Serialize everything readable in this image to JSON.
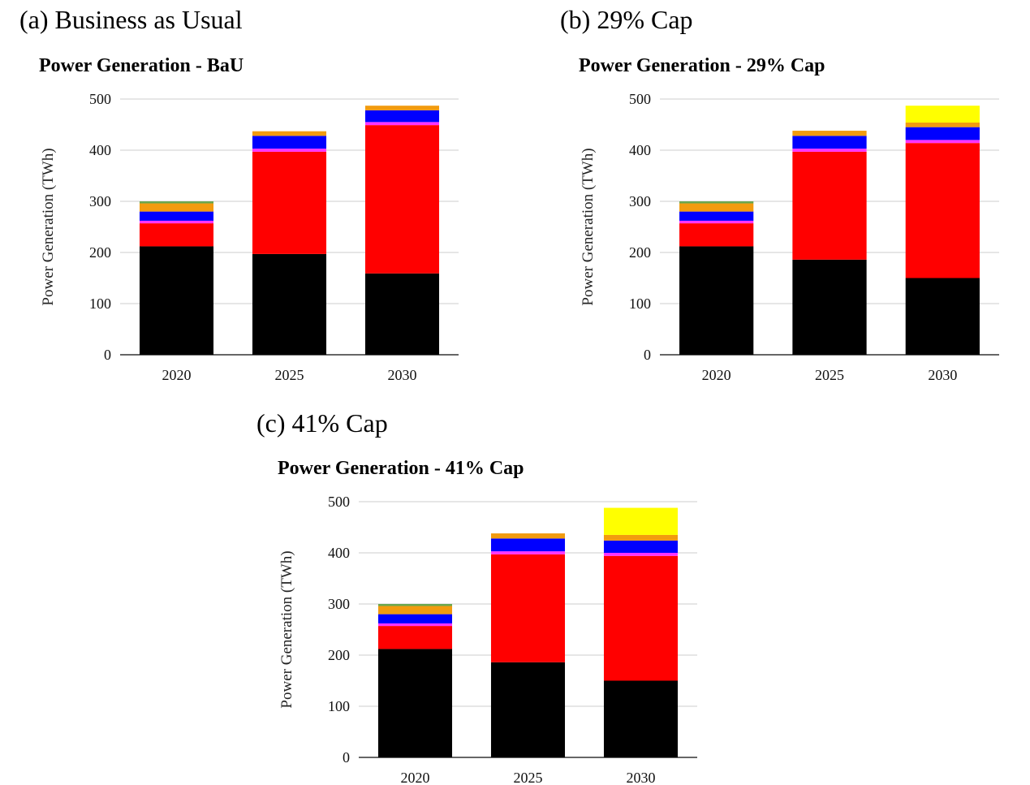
{
  "panels": [
    {
      "label": "(a) Business as Usual"
    },
    {
      "label": "(b) 29% Cap"
    },
    {
      "label": "(c) 41% Cap"
    }
  ],
  "colors": [
    "#000000",
    "#ff0000",
    "#ff33ff",
    "#0000ff",
    "#f29b0f",
    "#ffff00",
    "#6aa84f"
  ],
  "chart_data": [
    {
      "type": "bar",
      "stacked": true,
      "title": "Power Generation - BaU",
      "ylabel": "Power Generation (TWh)",
      "xlabel": "",
      "categories": [
        "2020",
        "2025",
        "2030"
      ],
      "ylim": [
        0,
        500
      ],
      "yticks": [
        0,
        100,
        200,
        300,
        400,
        500
      ],
      "grid": true,
      "series": [
        {
          "color": "#000000",
          "values": [
            212,
            197,
            159
          ]
        },
        {
          "color": "#ff0000",
          "values": [
            45,
            200,
            290
          ]
        },
        {
          "color": "#ff33ff",
          "values": [
            5,
            6,
            6
          ]
        },
        {
          "color": "#0000ff",
          "values": [
            18,
            25,
            23
          ]
        },
        {
          "color": "#f29b0f",
          "values": [
            16,
            9,
            9
          ]
        },
        {
          "color": "#ffff00",
          "values": [
            0,
            0,
            0
          ]
        },
        {
          "color": "#6aa84f",
          "values": [
            4,
            0,
            0
          ]
        }
      ]
    },
    {
      "type": "bar",
      "stacked": true,
      "title": "Power Generation - 29% Cap",
      "ylabel": "Power Generation (TWh)",
      "xlabel": "",
      "categories": [
        "2020",
        "2025",
        "2030"
      ],
      "ylim": [
        0,
        500
      ],
      "yticks": [
        0,
        100,
        200,
        300,
        400,
        500
      ],
      "grid": true,
      "series": [
        {
          "color": "#000000",
          "values": [
            212,
            186,
            150
          ]
        },
        {
          "color": "#ff0000",
          "values": [
            45,
            211,
            264
          ]
        },
        {
          "color": "#ff33ff",
          "values": [
            5,
            6,
            6
          ]
        },
        {
          "color": "#0000ff",
          "values": [
            18,
            25,
            25
          ]
        },
        {
          "color": "#f29b0f",
          "values": [
            16,
            10,
            9
          ]
        },
        {
          "color": "#ffff00",
          "values": [
            0,
            0,
            33
          ]
        },
        {
          "color": "#6aa84f",
          "values": [
            4,
            0,
            0
          ]
        }
      ]
    },
    {
      "type": "bar",
      "stacked": true,
      "title": "Power Generation - 41% Cap",
      "ylabel": "Power Generation (TWh)",
      "xlabel": "",
      "categories": [
        "2020",
        "2025",
        "2030"
      ],
      "ylim": [
        0,
        500
      ],
      "yticks": [
        0,
        100,
        200,
        300,
        400,
        500
      ],
      "grid": true,
      "series": [
        {
          "color": "#000000",
          "values": [
            212,
            186,
            150
          ]
        },
        {
          "color": "#ff0000",
          "values": [
            45,
            211,
            244
          ]
        },
        {
          "color": "#ff33ff",
          "values": [
            5,
            6,
            6
          ]
        },
        {
          "color": "#0000ff",
          "values": [
            18,
            25,
            24
          ]
        },
        {
          "color": "#f29b0f",
          "values": [
            16,
            10,
            11
          ]
        },
        {
          "color": "#ffff00",
          "values": [
            0,
            0,
            53
          ]
        },
        {
          "color": "#6aa84f",
          "values": [
            4,
            0,
            0
          ]
        }
      ]
    }
  ]
}
